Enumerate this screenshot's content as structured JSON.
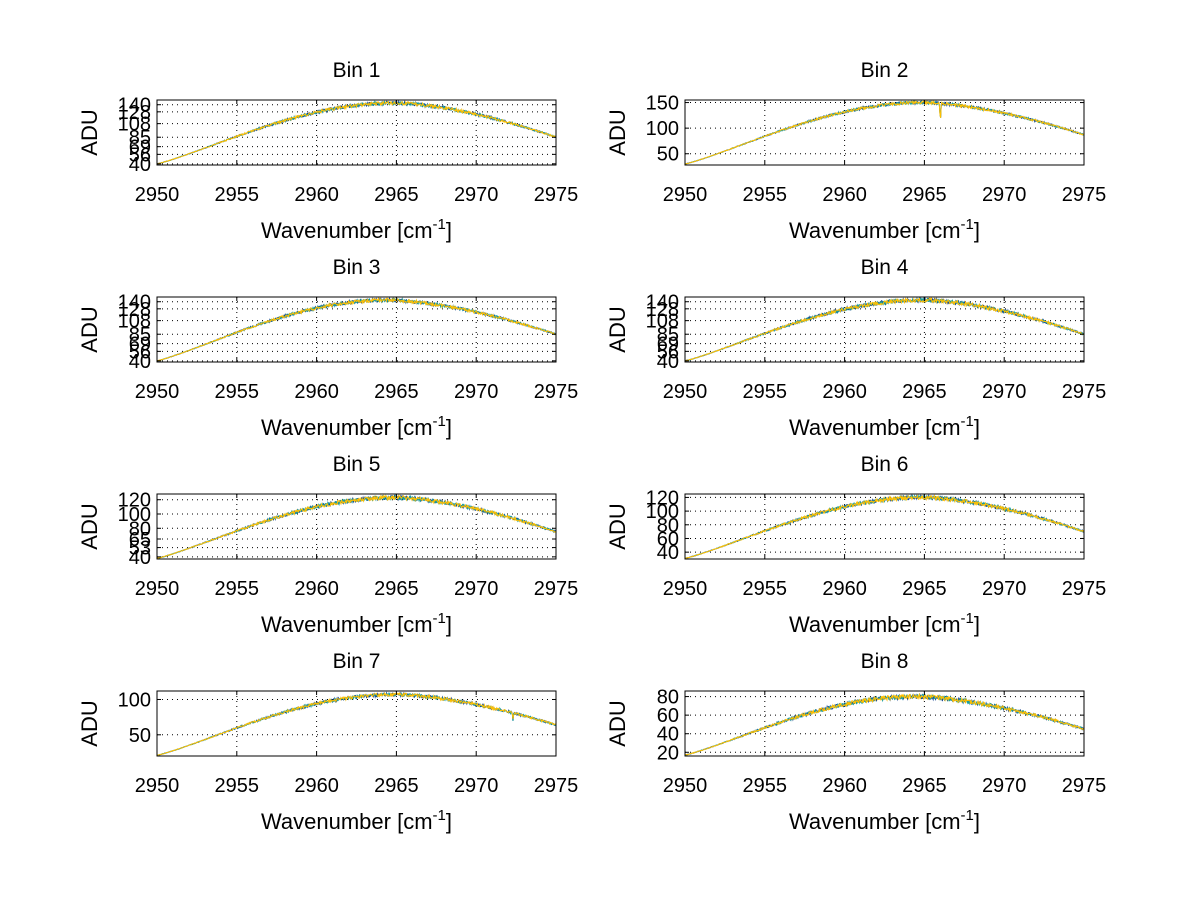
{
  "figure": {
    "background": "#ffffff",
    "series_colors": [
      "#0a3c8c",
      "#1a9e9e",
      "#ffbf00"
    ],
    "grid": true,
    "grid_style": "dotted",
    "layout": "4 rows x 2 columns"
  },
  "chart_data": [
    {
      "type": "line",
      "title": "Bin 1",
      "xlabel": "Wavenumber [cm",
      "xlabel_sup": "-1",
      "xlabel_end": "]",
      "ylabel": "ADU",
      "xlim": [
        2950,
        2975
      ],
      "ylim": [
        38,
        148
      ],
      "xticks": [
        2950,
        2955,
        2960,
        2965,
        2970,
        2975
      ],
      "yticks": [
        40,
        56,
        69,
        85,
        108,
        128,
        140
      ],
      "ytick_labels": [
        "40",
        "56",
        "69",
        "85",
        "108",
        "128",
        "140"
      ],
      "curve": {
        "start": 40,
        "peak": 143,
        "peak_x": 2965,
        "end": 85,
        "noise": 3
      },
      "x": [
        2950,
        2952.5,
        2955,
        2957.5,
        2960,
        2962.5,
        2965,
        2967.5,
        2970,
        2972.5,
        2975
      ],
      "series": [
        {
          "values": [
            40,
            58,
            82,
            103,
            122,
            137,
            143,
            139,
            124,
            106,
            85
          ]
        },
        {
          "values": [
            40,
            58,
            81,
            103,
            123,
            138,
            144,
            140,
            123,
            105,
            85
          ]
        },
        {
          "values": [
            40,
            57,
            82,
            104,
            122,
            138,
            143,
            139,
            124,
            106,
            84
          ]
        }
      ]
    },
    {
      "type": "line",
      "title": "Bin 2",
      "xlabel": "Wavenumber [cm",
      "xlabel_sup": "-1",
      "xlabel_end": "]",
      "ylabel": "ADU",
      "xlim": [
        2950,
        2975
      ],
      "ylim": [
        28,
        155
      ],
      "xticks": [
        2950,
        2955,
        2960,
        2965,
        2970,
        2975
      ],
      "yticks": [
        50,
        100,
        150
      ],
      "ytick_labels": [
        "50",
        "100",
        "150"
      ],
      "curve": {
        "start": 30,
        "peak": 150,
        "peak_x": 2965,
        "end": 87,
        "noise": 3,
        "dip_x": 2966,
        "dip_depth": 35
      },
      "x": [
        2950,
        2952.5,
        2955,
        2957.5,
        2960,
        2962.5,
        2965,
        2967.5,
        2970,
        2972.5,
        2975
      ],
      "series": [
        {
          "values": [
            30,
            52,
            78,
            103,
            125,
            140,
            148,
            143,
            128,
            108,
            87
          ]
        },
        {
          "values": [
            30,
            52,
            79,
            103,
            126,
            141,
            149,
            144,
            127,
            107,
            87
          ]
        },
        {
          "values": [
            30,
            51,
            78,
            104,
            125,
            140,
            148,
            143,
            128,
            108,
            86
          ]
        }
      ]
    },
    {
      "type": "line",
      "title": "Bin 3",
      "xlabel": "Wavenumber [cm",
      "xlabel_sup": "-1",
      "xlabel_end": "]",
      "ylabel": "ADU",
      "xlim": [
        2950,
        2975
      ],
      "ylim": [
        38,
        148
      ],
      "xticks": [
        2950,
        2955,
        2960,
        2965,
        2970,
        2975
      ],
      "yticks": [
        40,
        56,
        69,
        85,
        108,
        128,
        140
      ],
      "ytick_labels": [
        "40",
        "56",
        "69",
        "85",
        "108",
        "128",
        "140"
      ],
      "curve": {
        "start": 40,
        "peak": 143,
        "peak_x": 2964.5,
        "end": 85,
        "noise": 3
      },
      "x": [
        2950,
        2952.5,
        2955,
        2957.5,
        2960,
        2962.5,
        2965,
        2967.5,
        2970,
        2972.5,
        2975
      ],
      "series": [
        {
          "values": [
            40,
            58,
            82,
            104,
            124,
            139,
            143,
            138,
            123,
            105,
            85
          ]
        },
        {
          "values": [
            40,
            58,
            82,
            104,
            124,
            139,
            144,
            139,
            122,
            104,
            85
          ]
        },
        {
          "values": [
            40,
            57,
            82,
            104,
            123,
            139,
            143,
            138,
            123,
            105,
            84
          ]
        }
      ]
    },
    {
      "type": "line",
      "title": "Bin 4",
      "xlabel": "Wavenumber [cm",
      "xlabel_sup": "-1",
      "xlabel_end": "]",
      "ylabel": "ADU",
      "xlim": [
        2950,
        2975
      ],
      "ylim": [
        38,
        148
      ],
      "xticks": [
        2950,
        2955,
        2960,
        2965,
        2970,
        2975
      ],
      "yticks": [
        40,
        56,
        69,
        85,
        108,
        128,
        140
      ],
      "ytick_labels": [
        "40",
        "56",
        "69",
        "85",
        "108",
        "128",
        "140"
      ],
      "curve": {
        "start": 40,
        "peak": 143,
        "peak_x": 2965,
        "end": 85,
        "noise": 3.5
      },
      "x": [
        2950,
        2952.5,
        2955,
        2957.5,
        2960,
        2962.5,
        2965,
        2967.5,
        2970,
        2972.5,
        2975
      ],
      "series": [
        {
          "values": [
            40,
            57,
            80,
            102,
            122,
            137,
            143,
            139,
            124,
            106,
            85
          ]
        },
        {
          "values": [
            40,
            57,
            80,
            102,
            123,
            138,
            144,
            140,
            124,
            105,
            85
          ]
        },
        {
          "values": [
            40,
            56,
            80,
            103,
            122,
            137,
            143,
            139,
            125,
            106,
            84
          ]
        }
      ]
    },
    {
      "type": "line",
      "title": "Bin 5",
      "xlabel": "Wavenumber [cm",
      "xlabel_sup": "-1",
      "xlabel_end": "]",
      "ylabel": "ADU",
      "xlim": [
        2950,
        2975
      ],
      "ylim": [
        37,
        128
      ],
      "xticks": [
        2950,
        2955,
        2960,
        2965,
        2970,
        2975
      ],
      "yticks": [
        40,
        53,
        65,
        80,
        100,
        120
      ],
      "ytick_labels": [
        "40",
        "53",
        "65",
        "80",
        "100",
        "120"
      ],
      "curve": {
        "start": 38,
        "peak": 123,
        "peak_x": 2965,
        "end": 75,
        "noise": 3
      },
      "x": [
        2950,
        2952.5,
        2955,
        2957.5,
        2960,
        2962.5,
        2965,
        2967.5,
        2970,
        2972.5,
        2975
      ],
      "series": [
        {
          "values": [
            38,
            53,
            72,
            90,
            106,
            118,
            123,
            120,
            108,
            92,
            75
          ]
        },
        {
          "values": [
            38,
            53,
            72,
            90,
            107,
            119,
            124,
            121,
            107,
            91,
            75
          ]
        },
        {
          "values": [
            38,
            52,
            72,
            91,
            106,
            118,
            123,
            120,
            108,
            92,
            74
          ]
        }
      ]
    },
    {
      "type": "line",
      "title": "Bin 6",
      "xlabel": "Wavenumber [cm",
      "xlabel_sup": "-1",
      "xlabel_end": "]",
      "ylabel": "ADU",
      "xlim": [
        2950,
        2975
      ],
      "ylim": [
        30,
        125
      ],
      "xticks": [
        2950,
        2955,
        2960,
        2965,
        2970,
        2975
      ],
      "yticks": [
        40,
        60,
        80,
        100,
        120
      ],
      "ytick_labels": [
        "40",
        "60",
        "80",
        "100",
        "120"
      ],
      "curve": {
        "start": 31,
        "peak": 120,
        "peak_x": 2965,
        "end": 70,
        "noise": 3
      },
      "x": [
        2950,
        2952.5,
        2955,
        2957.5,
        2960,
        2962.5,
        2965,
        2967.5,
        2970,
        2972.5,
        2975
      ],
      "series": [
        {
          "values": [
            31,
            47,
            66,
            85,
            101,
            113,
            119,
            116,
            103,
            87,
            70
          ]
        },
        {
          "values": [
            31,
            47,
            66,
            85,
            102,
            114,
            120,
            117,
            102,
            86,
            70
          ]
        },
        {
          "values": [
            31,
            46,
            66,
            86,
            101,
            113,
            119,
            116,
            103,
            87,
            69
          ]
        }
      ]
    },
    {
      "type": "line",
      "title": "Bin 7",
      "xlabel": "Wavenumber [cm",
      "xlabel_sup": "-1",
      "xlabel_end": "]",
      "ylabel": "ADU",
      "xlim": [
        2950,
        2975
      ],
      "ylim": [
        20,
        112
      ],
      "xticks": [
        2950,
        2955,
        2960,
        2965,
        2970,
        2975
      ],
      "yticks": [
        50,
        100
      ],
      "ytick_labels": [
        "50",
        "100"
      ],
      "curve": {
        "start": 21,
        "peak": 107,
        "peak_x": 2965,
        "end": 64,
        "noise": 2.5,
        "dip_x": 2972.3,
        "dip_depth": 10
      },
      "x": [
        2950,
        2952.5,
        2955,
        2957.5,
        2960,
        2962.5,
        2965,
        2967.5,
        2970,
        2972.5,
        2975
      ],
      "series": [
        {
          "values": [
            21,
            38,
            57,
            75,
            91,
            102,
            107,
            104,
            93,
            78,
            64
          ]
        },
        {
          "values": [
            21,
            38,
            57,
            75,
            92,
            103,
            108,
            105,
            92,
            77,
            64
          ]
        },
        {
          "values": [
            21,
            37,
            57,
            76,
            91,
            102,
            107,
            104,
            93,
            78,
            63
          ]
        }
      ]
    },
    {
      "type": "line",
      "title": "Bin 8",
      "xlabel": "Wavenumber [cm",
      "xlabel_sup": "-1",
      "xlabel_end": "]",
      "ylabel": "ADU",
      "xlim": [
        2950,
        2975
      ],
      "ylim": [
        16,
        86
      ],
      "xticks": [
        2950,
        2955,
        2960,
        2965,
        2970,
        2975
      ],
      "yticks": [
        20,
        40,
        60,
        80
      ],
      "ytick_labels": [
        "20",
        "40",
        "60",
        "80"
      ],
      "curve": {
        "start": 17,
        "peak": 80,
        "peak_x": 2964.5,
        "end": 45,
        "noise": 2.5
      },
      "x": [
        2950,
        2952.5,
        2955,
        2957.5,
        2960,
        2962.5,
        2965,
        2967.5,
        2970,
        2972.5,
        2975
      ],
      "series": [
        {
          "values": [
            17,
            30,
            45,
            58,
            69,
            77,
            80,
            77,
            69,
            57,
            45
          ]
        },
        {
          "values": [
            17,
            30,
            45,
            58,
            70,
            78,
            81,
            78,
            68,
            56,
            45
          ]
        },
        {
          "values": [
            17,
            29,
            45,
            59,
            69,
            77,
            80,
            77,
            69,
            57,
            44
          ]
        }
      ]
    }
  ]
}
